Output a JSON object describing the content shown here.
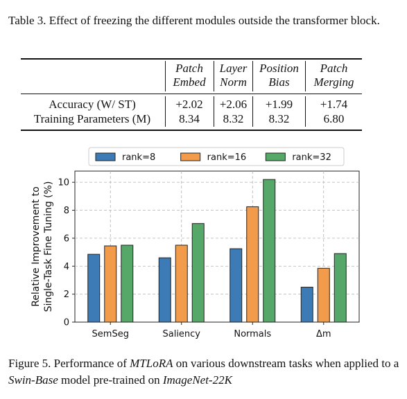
{
  "table_caption": "Table 3. Effect of freezing the different modules outside the transformer block.",
  "table": {
    "columns": [
      {
        "line1": "Patch",
        "line2": "Embed"
      },
      {
        "line1": "Layer",
        "line2": "Norm"
      },
      {
        "line1": "Position",
        "line2": "Bias"
      },
      {
        "line1": "Patch",
        "line2": "Merging"
      }
    ],
    "rows": [
      {
        "label": "Accuracy (W/ ST)",
        "values": [
          "+2.02",
          "+2.06",
          "+1.99",
          "+1.74"
        ]
      },
      {
        "label": "Training Parameters (M)",
        "values": [
          "8.34",
          "8.32",
          "8.32",
          "6.80"
        ]
      }
    ]
  },
  "chart_data": {
    "type": "bar",
    "categories": [
      "SemSeg",
      "Saliency",
      "Normals",
      "Δm"
    ],
    "series": [
      {
        "name": "rank=8",
        "color": "#3d7bb6",
        "values": [
          4.85,
          4.6,
          5.25,
          2.5
        ]
      },
      {
        "name": "rank=16",
        "color": "#f29b4a",
        "values": [
          5.45,
          5.5,
          8.25,
          3.85
        ]
      },
      {
        "name": "rank=32",
        "color": "#55a868",
        "values": [
          5.5,
          7.05,
          10.2,
          4.9
        ]
      }
    ],
    "ylabel": "Relative Improvement to Single-Task Fine Tuning (%)",
    "ylabel_line1": "Relative Improvement to",
    "ylabel_line2": "Single-Task Fine Tuning (%)",
    "ylim": [
      0,
      10.8
    ],
    "yticks": [
      0,
      2,
      4,
      6,
      8,
      10
    ],
    "grid": true,
    "legend_position": "top"
  },
  "figure_caption": {
    "p1": "Figure 5. Performance of ",
    "em1": "MTLoRA",
    "p2": " on various downstream tasks when applied to a ",
    "em2": "Swin-Base",
    "p3": " model pre-trained on ",
    "em3": "ImageNet-22K"
  }
}
